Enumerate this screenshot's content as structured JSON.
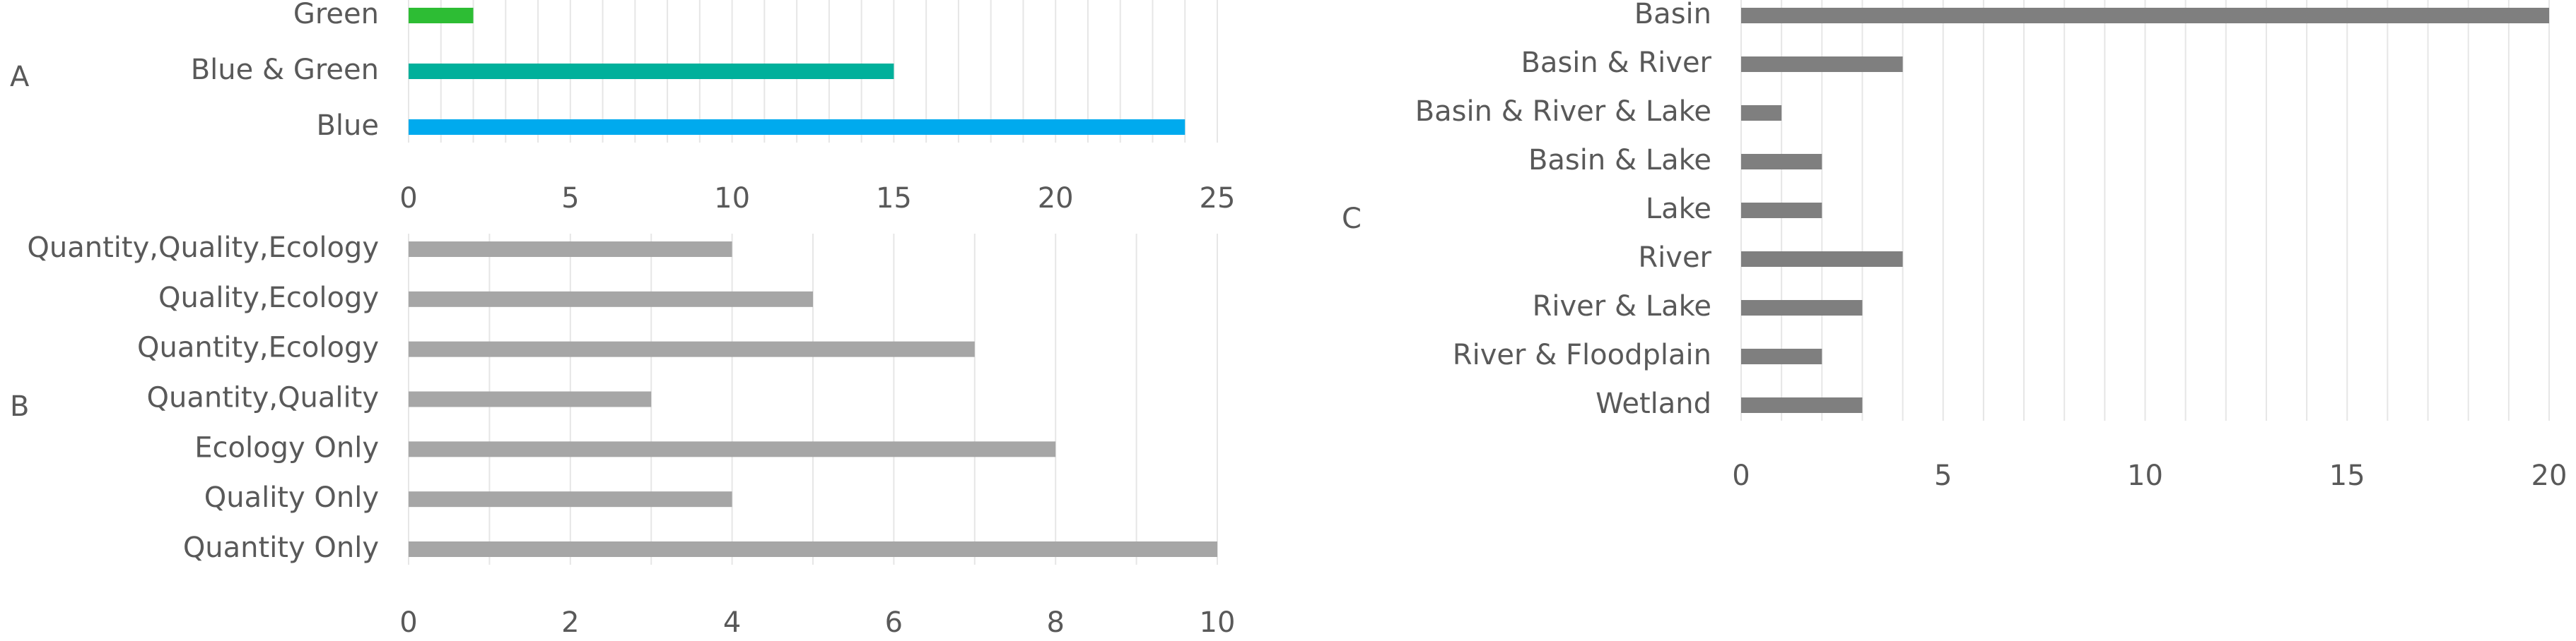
{
  "chart_data": [
    {
      "panel": "A",
      "type": "bar",
      "orientation": "horizontal",
      "categories": [
        "Green",
        "Blue & Green",
        "Blue"
      ],
      "values": [
        2,
        15,
        24
      ],
      "colors": [
        "#2dbd34",
        "#00b09b",
        "#00aaee"
      ],
      "xlim": [
        0,
        25
      ],
      "xticks": [
        0,
        5,
        10,
        15,
        20,
        25
      ],
      "grid": true
    },
    {
      "panel": "B",
      "type": "bar",
      "orientation": "horizontal",
      "categories": [
        "Quantity,Quality,Ecology",
        "Quality,Ecology",
        "Quantity,Ecology",
        "Quantity,Quality",
        "Ecology Only",
        "Quality Only",
        "Quantity Only"
      ],
      "values": [
        4,
        5,
        7,
        3,
        8,
        4,
        10
      ],
      "colors": [
        "#a6a6a6"
      ],
      "xlim": [
        0,
        10
      ],
      "xticks": [
        0,
        2,
        4,
        6,
        8,
        10
      ],
      "grid": true
    },
    {
      "panel": "C",
      "type": "bar",
      "orientation": "horizontal",
      "categories": [
        "Basin",
        "Basin & River",
        "Basin & River & Lake",
        "Basin & Lake",
        "Lake",
        "River",
        "River & Lake",
        "River & Floodplain",
        "Wetland"
      ],
      "values": [
        20,
        4,
        1,
        2,
        2,
        4,
        3,
        2,
        3
      ],
      "colors": [
        "#7f7f7f"
      ],
      "xlim": [
        0,
        20
      ],
      "xticks": [
        0,
        5,
        10,
        15,
        20
      ],
      "grid": true
    }
  ]
}
